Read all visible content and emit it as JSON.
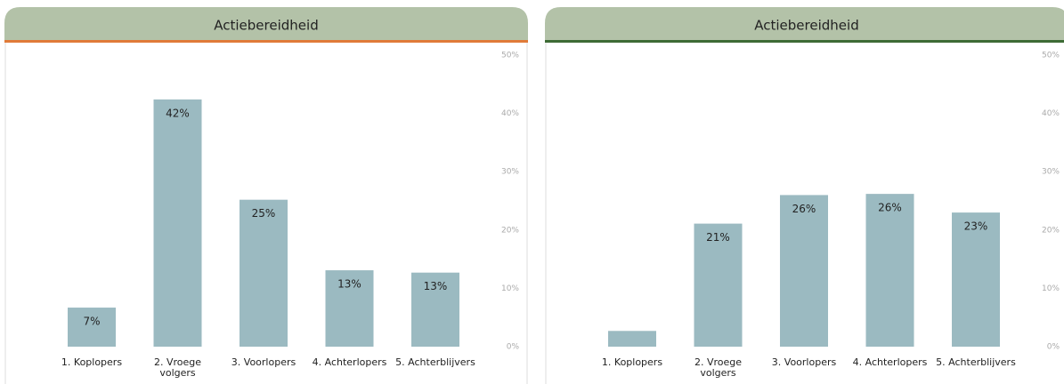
{
  "chart_data": [
    {
      "type": "bar",
      "title": "Actiebereidheid",
      "header_color": "#b3c2a8",
      "accent_color": "#e07b39",
      "color": "#9bbac1",
      "categories": [
        "1. Koplopers",
        "2. Vroege volgers",
        "3. Voorlopers",
        "4. Achterlopers",
        "5. Achterblijvers"
      ],
      "values": [
        6.7,
        42.4,
        25.2,
        13.1,
        12.7
      ],
      "value_labels": [
        "7%",
        "42%",
        "25%",
        "13%",
        "13%"
      ],
      "ylim": [
        0,
        50
      ],
      "yticks": [
        {
          "value": 0,
          "label": "0%"
        },
        {
          "value": 10,
          "label": "10%"
        },
        {
          "value": 20,
          "label": "20%"
        },
        {
          "value": 30,
          "label": "30%"
        },
        {
          "value": 40,
          "label": "40%"
        },
        {
          "value": 50,
          "label": "50%"
        }
      ]
    },
    {
      "type": "bar",
      "title": "Actiebereidheid",
      "header_color": "#b3c2a8",
      "accent_color": "#3d6b35",
      "color": "#9bbac1",
      "categories": [
        "1. Koplopers",
        "2. Vroege volgers",
        "3. Voorlopers",
        "4. Achterlopers",
        "5. Achterblijvers"
      ],
      "values": [
        2.7,
        21.1,
        26,
        26.2,
        23
      ],
      "value_labels": [
        null,
        "21%",
        "26%",
        "26%",
        "23%"
      ],
      "ylim": [
        0,
        50
      ],
      "yticks": [
        {
          "value": 0,
          "label": "0%"
        },
        {
          "value": 10,
          "label": "10%"
        },
        {
          "value": 20,
          "label": "20%"
        },
        {
          "value": 30,
          "label": "30%"
        },
        {
          "value": 40,
          "label": "40%"
        },
        {
          "value": 50,
          "label": "50%"
        }
      ]
    }
  ]
}
